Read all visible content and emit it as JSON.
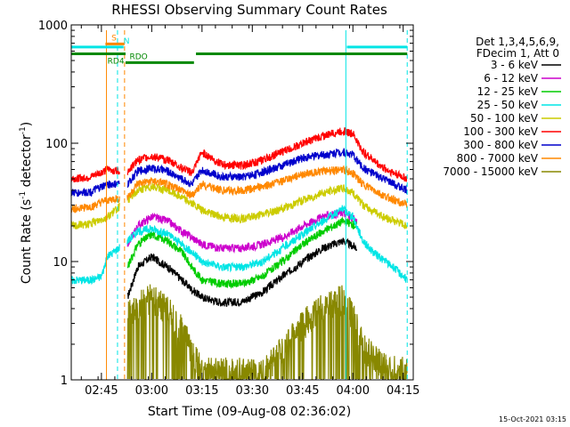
{
  "chart_data": {
    "type": "line",
    "title": "RHESSI Observing Summary Count Rates",
    "xlabel": "Start Time (09-Aug-08 02:36:02)",
    "ylabel_main": "Count Rate (s",
    "ylabel_sup": "-1",
    "ylabel_mid": " detector",
    "ylabel_end": ")",
    "xlim": [
      2.6,
      4.3
    ],
    "ylim": [
      1,
      1000
    ],
    "yscale": "log",
    "xticks": [
      {
        "x": 2.75,
        "label": "02:45"
      },
      {
        "x": 3.0,
        "label": "03:00"
      },
      {
        "x": 3.25,
        "label": "03:15"
      },
      {
        "x": 3.5,
        "label": "03:30"
      },
      {
        "x": 3.75,
        "label": "03:45"
      },
      {
        "x": 4.0,
        "label": "04:00"
      },
      {
        "x": 4.25,
        "label": "04:15"
      }
    ],
    "yticks": [
      {
        "y": 1,
        "label": "1"
      },
      {
        "y": 10,
        "label": "10"
      },
      {
        "y": 100,
        "label": "100"
      },
      {
        "y": 1000,
        "label": "1000"
      }
    ],
    "legend_header": [
      "Det 1,3,4,5,6,9,",
      "FDecim 1, Att 0"
    ],
    "legend_position": "right",
    "series": [
      {
        "name": "3 - 6 keV",
        "color": "#000000",
        "kind": "main",
        "points": [
          [
            2.88,
            5
          ],
          [
            2.93,
            9
          ],
          [
            3.0,
            11
          ],
          [
            3.08,
            9
          ],
          [
            3.15,
            7
          ],
          [
            3.2,
            5.8
          ],
          [
            3.25,
            5
          ],
          [
            3.35,
            4.5
          ],
          [
            3.45,
            4.6
          ],
          [
            3.55,
            5.5
          ],
          [
            3.65,
            7.5
          ],
          [
            3.75,
            10
          ],
          [
            3.85,
            13
          ],
          [
            3.95,
            15
          ],
          [
            4.02,
            13
          ]
        ]
      },
      {
        "name": "6 - 12 keV",
        "color": "#cc00cc",
        "kind": "main",
        "points": [
          [
            2.88,
            14
          ],
          [
            2.93,
            20
          ],
          [
            3.0,
            24
          ],
          [
            3.08,
            22
          ],
          [
            3.15,
            18
          ],
          [
            3.2,
            16
          ],
          [
            3.25,
            14
          ],
          [
            3.35,
            13
          ],
          [
            3.45,
            13
          ],
          [
            3.55,
            14
          ],
          [
            3.65,
            16
          ],
          [
            3.75,
            20
          ],
          [
            3.85,
            24
          ],
          [
            3.95,
            26
          ],
          [
            4.02,
            22
          ]
        ]
      },
      {
        "name": "12 - 25 keV",
        "color": "#00cc00",
        "kind": "main",
        "points": [
          [
            2.88,
            9
          ],
          [
            2.93,
            14
          ],
          [
            3.0,
            17
          ],
          [
            3.08,
            15
          ],
          [
            3.15,
            12
          ],
          [
            3.2,
            9
          ],
          [
            3.25,
            7
          ],
          [
            3.35,
            6.5
          ],
          [
            3.45,
            6.5
          ],
          [
            3.55,
            7.5
          ],
          [
            3.65,
            10
          ],
          [
            3.75,
            14
          ],
          [
            3.85,
            18
          ],
          [
            3.95,
            22
          ],
          [
            4.02,
            20
          ]
        ]
      },
      {
        "name": "25 - 50 keV",
        "color": "#00e5e5",
        "kind": "main",
        "points": [
          [
            2.6,
            7
          ],
          [
            2.7,
            7
          ],
          [
            2.75,
            7.5
          ],
          [
            2.78,
            11
          ],
          [
            2.88,
            15
          ],
          [
            2.93,
            18
          ],
          [
            3.0,
            19
          ],
          [
            3.08,
            17
          ],
          [
            3.15,
            14
          ],
          [
            3.2,
            12
          ],
          [
            3.25,
            10
          ],
          [
            3.35,
            9
          ],
          [
            3.45,
            9
          ],
          [
            3.55,
            10
          ],
          [
            3.65,
            13
          ],
          [
            3.75,
            17
          ],
          [
            3.85,
            22
          ],
          [
            3.95,
            28
          ],
          [
            4.0,
            24
          ],
          [
            4.05,
            15
          ],
          [
            4.1,
            12
          ],
          [
            4.2,
            9
          ],
          [
            4.27,
            7
          ]
        ]
      },
      {
        "name": "50 - 100 keV",
        "color": "#cccc00",
        "kind": "main",
        "points": [
          [
            2.6,
            20
          ],
          [
            2.7,
            21
          ],
          [
            2.78,
            24
          ],
          [
            2.88,
            33
          ],
          [
            2.93,
            40
          ],
          [
            3.0,
            43
          ],
          [
            3.08,
            40
          ],
          [
            3.15,
            35
          ],
          [
            3.2,
            31
          ],
          [
            3.25,
            27
          ],
          [
            3.35,
            24
          ],
          [
            3.45,
            23
          ],
          [
            3.55,
            25
          ],
          [
            3.65,
            28
          ],
          [
            3.75,
            33
          ],
          [
            3.85,
            38
          ],
          [
            3.95,
            42
          ],
          [
            4.0,
            38
          ],
          [
            4.05,
            30
          ],
          [
            4.15,
            24
          ],
          [
            4.27,
            20
          ]
        ]
      },
      {
        "name": "100 - 300 keV",
        "color": "#ff0000",
        "kind": "main",
        "points": [
          [
            2.6,
            50
          ],
          [
            2.7,
            52
          ],
          [
            2.78,
            60
          ],
          [
            2.88,
            58
          ],
          [
            2.93,
            72
          ],
          [
            3.0,
            78
          ],
          [
            3.08,
            72
          ],
          [
            3.15,
            62
          ],
          [
            3.2,
            56
          ],
          [
            3.25,
            84
          ],
          [
            3.35,
            66
          ],
          [
            3.45,
            65
          ],
          [
            3.55,
            72
          ],
          [
            3.65,
            85
          ],
          [
            3.75,
            100
          ],
          [
            3.85,
            115
          ],
          [
            3.95,
            128
          ],
          [
            4.0,
            120
          ],
          [
            4.05,
            85
          ],
          [
            4.15,
            62
          ],
          [
            4.27,
            50
          ]
        ]
      },
      {
        "name": "300 - 800 keV",
        "color": "#0000cc",
        "kind": "main",
        "points": [
          [
            2.6,
            38
          ],
          [
            2.7,
            39
          ],
          [
            2.78,
            45
          ],
          [
            2.88,
            45
          ],
          [
            2.93,
            58
          ],
          [
            3.0,
            62
          ],
          [
            3.08,
            58
          ],
          [
            3.15,
            50
          ],
          [
            3.2,
            45
          ],
          [
            3.25,
            60
          ],
          [
            3.35,
            52
          ],
          [
            3.45,
            52
          ],
          [
            3.55,
            57
          ],
          [
            3.65,
            65
          ],
          [
            3.75,
            75
          ],
          [
            3.85,
            80
          ],
          [
            3.95,
            85
          ],
          [
            4.0,
            80
          ],
          [
            4.05,
            62
          ],
          [
            4.15,
            50
          ],
          [
            4.27,
            40
          ]
        ]
      },
      {
        "name": "800 - 7000 keV",
        "color": "#ff8800",
        "kind": "main",
        "points": [
          [
            2.6,
            28
          ],
          [
            2.7,
            29
          ],
          [
            2.78,
            33
          ],
          [
            2.88,
            35
          ],
          [
            2.93,
            45
          ],
          [
            3.0,
            48
          ],
          [
            3.08,
            45
          ],
          [
            3.15,
            40
          ],
          [
            3.2,
            36
          ],
          [
            3.25,
            45
          ],
          [
            3.35,
            40
          ],
          [
            3.45,
            40
          ],
          [
            3.55,
            43
          ],
          [
            3.65,
            48
          ],
          [
            3.75,
            55
          ],
          [
            3.85,
            58
          ],
          [
            3.95,
            60
          ],
          [
            4.0,
            56
          ],
          [
            4.05,
            45
          ],
          [
            4.15,
            36
          ],
          [
            4.27,
            30
          ]
        ]
      },
      {
        "name": "7000 - 15000 keV",
        "color": "#888800",
        "kind": "low",
        "points": [
          [
            2.88,
            3.5
          ],
          [
            2.93,
            4.5
          ],
          [
            3.0,
            5
          ],
          [
            3.08,
            4
          ],
          [
            3.15,
            2.8
          ],
          [
            3.2,
            1.7
          ],
          [
            3.25,
            1.2
          ],
          [
            3.55,
            1.2
          ],
          [
            3.65,
            1.8
          ],
          [
            3.75,
            3
          ],
          [
            3.85,
            4.2
          ],
          [
            3.95,
            5
          ],
          [
            4.0,
            3.5
          ],
          [
            4.05,
            2
          ],
          [
            4.15,
            1.3
          ],
          [
            4.27,
            1.2
          ]
        ]
      }
    ],
    "flags": [
      {
        "label": "S",
        "color": "#ff8800",
        "x1": 2.77,
        "x2": 2.865,
        "y": 690,
        "label_x": 2.8
      },
      {
        "label": "N",
        "color": "#00e5e5",
        "x1": 2.6,
        "x2": 2.86,
        "y": 650,
        "label_x": 2.86
      },
      {
        "label": "",
        "color": "#00e5e5",
        "x1": 3.97,
        "x2": 4.27,
        "y": 650,
        "label_x": 3.97
      },
      {
        "label": "RD4",
        "color": "#008800",
        "x1": 2.6,
        "x2": 2.87,
        "y": 570,
        "label_x": 2.78,
        "label_below": true
      },
      {
        "label": "RDO",
        "color": "#008800",
        "x1": 2.87,
        "x2": 3.21,
        "y": 480,
        "label_x": 2.89
      },
      {
        "label": "",
        "color": "#008800",
        "x1": 3.22,
        "x2": 4.27,
        "y": 570,
        "label_x": 3.22
      }
    ],
    "vlines": [
      {
        "x": 2.775,
        "color": "#ff8800",
        "dash": false
      },
      {
        "x": 2.865,
        "color": "#ff8800",
        "dash": true
      },
      {
        "x": 2.83,
        "color": "#00e5e5",
        "dash": true
      },
      {
        "x": 3.965,
        "color": "#00e5e5",
        "dash": false
      },
      {
        "x": 4.27,
        "color": "#00e5e5",
        "dash": true
      }
    ],
    "footer_date": "15-Oct-2021 03:15"
  }
}
